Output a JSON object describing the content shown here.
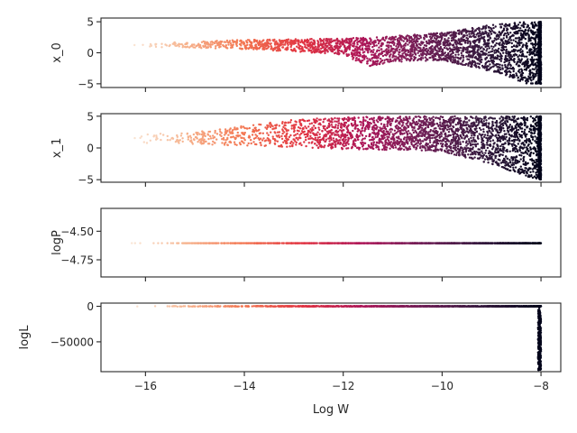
{
  "chart_data": [
    {
      "type": "scatter",
      "ylabel": "x_0",
      "xlabel": "",
      "xlim": [
        -16.9,
        -7.6
      ],
      "ylim": [
        -5.6,
        5.6
      ],
      "yticks": [
        5,
        0,
        -5
      ],
      "yticklabels": [
        "5",
        "0",
        "−5"
      ],
      "xticks": [
        -16,
        -14,
        -12,
        -10,
        -8
      ],
      "xticklabels": [
        "",
        "",
        "",
        "",
        ""
      ],
      "series": [
        {
          "description": "points colored by Log W (light=low, dark=high); band x_0 ~ 1 at Log W=-16.4, spreading to [-5,5] at Log W=-8",
          "x_min": -16.4,
          "x_max": -8.0,
          "envelope": [
            [
              -16.4,
              1.0,
              1.5
            ],
            [
              -15.0,
              0.8,
              1.8
            ],
            [
              -14.0,
              0.6,
              2.1
            ],
            [
              -13.0,
              0.2,
              2.2
            ],
            [
              -12.0,
              -0.3,
              2.3
            ],
            [
              -11.5,
              -2.2,
              2.5
            ],
            [
              -11.0,
              -1.5,
              2.7
            ],
            [
              -10.0,
              -1.2,
              3.2
            ],
            [
              -9.0,
              -3.0,
              4.5
            ],
            [
              -8.3,
              -5.0,
              5.0
            ],
            [
              -8.0,
              -5.0,
              5.0
            ]
          ]
        }
      ]
    },
    {
      "type": "scatter",
      "ylabel": "x_1",
      "xlabel": "",
      "xlim": [
        -16.9,
        -7.6
      ],
      "ylim": [
        -5.4,
        5.4
      ],
      "yticks": [
        5,
        0,
        -5
      ],
      "yticklabels": [
        "5",
        "0",
        "−5"
      ],
      "xticks": [
        -16,
        -14,
        -12,
        -10,
        -8
      ],
      "xticklabels": [
        "",
        "",
        "",
        "",
        ""
      ],
      "series": [
        {
          "description": "points colored by Log W; band x_1 ~ 1.5 at Log W=-16.4 narrowing toward 0, spreading to [-5,5] near Log W=-8",
          "x_min": -16.4,
          "x_max": -8.0,
          "envelope": [
            [
              -16.4,
              0.8,
              2.0
            ],
            [
              -15.0,
              0.6,
              2.5
            ],
            [
              -14.0,
              0.3,
              3.5
            ],
            [
              -13.0,
              0.1,
              4.5
            ],
            [
              -12.0,
              -0.2,
              4.8
            ],
            [
              -11.0,
              -0.3,
              5.0
            ],
            [
              -10.0,
              -0.6,
              5.0
            ],
            [
              -9.0,
              -2.5,
              5.0
            ],
            [
              -8.3,
              -4.5,
              5.0
            ],
            [
              -8.0,
              -5.0,
              5.0
            ]
          ]
        }
      ]
    },
    {
      "type": "scatter",
      "ylabel": "logP",
      "xlabel": "",
      "xlim": [
        -16.9,
        -7.6
      ],
      "ylim": [
        -4.9,
        -4.3
      ],
      "yticks": [
        -4.5,
        -4.75
      ],
      "yticklabels": [
        "−4.50",
        "−4.75"
      ],
      "xticks": [
        -16,
        -14,
        -12,
        -10,
        -8
      ],
      "xticklabels": [
        "",
        "",
        "",
        "",
        ""
      ],
      "series": [
        {
          "description": "constant logP across all Log W",
          "x_min": -16.4,
          "x_max": -8.0,
          "value": -4.605
        }
      ]
    },
    {
      "type": "scatter",
      "ylabel": "logL",
      "xlabel": "Log W",
      "xlim": [
        -16.9,
        -7.6
      ],
      "ylim": [
        -92000,
        4500
      ],
      "yticks": [
        0,
        -50000
      ],
      "yticklabels": [
        "0",
        "−50000"
      ],
      "xticks": [
        -16,
        -14,
        -12,
        -10,
        -8
      ],
      "xticklabels": [
        "−16",
        "−14",
        "−12",
        "−10",
        "−8"
      ],
      "series": [
        {
          "description": "logL ~ 0 for most Log W, dropping to about -90000 at Log W = -8",
          "x_min": -16.4,
          "x_max": -8.0,
          "value": 0,
          "drop_min": -90000
        }
      ]
    }
  ],
  "colors": {
    "axes": "#262626",
    "background": "#ffffff",
    "colormap": [
      "#faebdd",
      "#f6b48f",
      "#f37651",
      "#e13342",
      "#ad1759",
      "#701f57",
      "#35193e",
      "#03051a"
    ]
  }
}
